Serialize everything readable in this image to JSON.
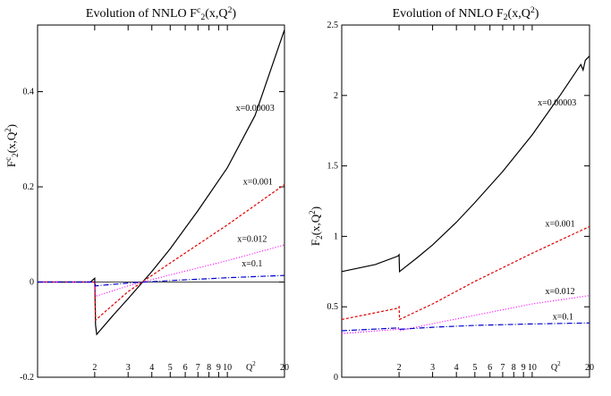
{
  "chart_data": [
    {
      "type": "line",
      "title": "Evolution of NNLO F",
      "title_sup": "c",
      "title_sub": "2",
      "title_tail": "(x,Q",
      "title_sup2": "2",
      "title_close": ")",
      "ylabel_main": "F",
      "ylabel_sup": "c",
      "ylabel_sub": "2",
      "ylabel_tail": "(x,Q",
      "ylabel_sup2": "2",
      "ylabel_close": ")",
      "xlabel": "Q",
      "xlabel_sup": "2",
      "xscale": "log",
      "xlim": [
        1.0,
        20
      ],
      "ylim": [
        -0.2,
        0.54
      ],
      "xticks": [
        2,
        3,
        4,
        5,
        6,
        7,
        8,
        9,
        10,
        20
      ],
      "xtick_labels": [
        "2",
        "3",
        "4",
        "5",
        "6",
        "7",
        "8",
        "9",
        "10",
        "20"
      ],
      "yticks": [
        -0.2,
        0,
        0.2,
        0.4
      ],
      "ytick_labels": [
        "-0.2",
        "0",
        "0.2",
        "0.4"
      ],
      "zero_line": true,
      "series": [
        {
          "name": "x=0.00003",
          "color": "#000000",
          "dash": "",
          "x": [
            1.0,
            1.9,
            2.0,
            2.02,
            2.05,
            2.1,
            2.5,
            3.0,
            4.0,
            5.0,
            7.0,
            10.0,
            14.0,
            20.0
          ],
          "y": [
            0.0,
            0.0,
            0.008,
            -0.09,
            -0.11,
            -0.105,
            -0.07,
            -0.035,
            0.022,
            0.07,
            0.15,
            0.24,
            0.35,
            0.53
          ]
        },
        {
          "name": "x=0.001",
          "color": "#dd0000",
          "dash": "3,2",
          "x": [
            1.0,
            1.95,
            2.0,
            2.02,
            3.0,
            5.0,
            10.0,
            20.0
          ],
          "y": [
            0.0,
            0.0,
            0.0,
            -0.08,
            -0.02,
            0.04,
            0.12,
            0.205
          ]
        },
        {
          "name": "x=0.012",
          "color": "#ff00ff",
          "dash": "1,2",
          "x": [
            1.0,
            1.95,
            2.0,
            2.02,
            3.0,
            5.0,
            10.0,
            20.0
          ],
          "y": [
            0.0,
            0.0,
            0.0,
            -0.03,
            -0.008,
            0.015,
            0.045,
            0.078
          ]
        },
        {
          "name": "x=0.1",
          "color": "#0000cc",
          "dash": "6,2,1,2",
          "x": [
            1.0,
            2.0,
            2.02,
            3.0,
            5.0,
            10.0,
            20.0
          ],
          "y": [
            0.0,
            0.0,
            -0.008,
            -0.002,
            0.003,
            0.009,
            0.014
          ]
        }
      ],
      "labels": [
        {
          "text": "x=0.00003",
          "x": 14.0,
          "y": 0.36
        },
        {
          "text": "x=0.001",
          "x": 14.5,
          "y": 0.205
        },
        {
          "text": "x=0.012",
          "x": 13.5,
          "y": 0.085
        },
        {
          "text": "x=0.1",
          "x": 13.5,
          "y": 0.033
        }
      ]
    },
    {
      "type": "line",
      "title": "Evolution of NNLO F",
      "title_sup": "",
      "title_sub": "2",
      "title_tail": "(x,Q",
      "title_sup2": "2",
      "title_close": ")",
      "ylabel_main": "F",
      "ylabel_sup": "",
      "ylabel_sub": "2",
      "ylabel_tail": "(x,Q",
      "ylabel_sup2": "2",
      "ylabel_close": ")",
      "xlabel": "Q",
      "xlabel_sup": "2",
      "xscale": "log",
      "xlim": [
        1.0,
        20
      ],
      "ylim": [
        0,
        2.5
      ],
      "xticks": [
        2,
        3,
        4,
        5,
        6,
        7,
        8,
        9,
        10,
        20
      ],
      "xtick_labels": [
        "2",
        "3",
        "4",
        "5",
        "6",
        "7",
        "8",
        "9",
        "10",
        "20"
      ],
      "yticks": [
        0,
        0.5,
        1,
        1.5,
        2,
        2.5
      ],
      "ytick_labels": [
        "0",
        "0.5",
        "1",
        "1.5",
        "2",
        "2.5"
      ],
      "zero_line": false,
      "series": [
        {
          "name": "x=0.00003",
          "color": "#000000",
          "dash": "",
          "x": [
            1.0,
            1.5,
            1.97,
            2.0,
            2.01,
            2.5,
            3.0,
            4.0,
            5.0,
            7.0,
            10.0,
            14.0,
            18.0,
            18.5,
            19.0,
            20.0
          ],
          "y": [
            0.75,
            0.8,
            0.86,
            0.87,
            0.75,
            0.85,
            0.94,
            1.1,
            1.24,
            1.46,
            1.72,
            2.0,
            2.22,
            2.18,
            2.25,
            2.28
          ]
        },
        {
          "name": "x=0.001",
          "color": "#dd0000",
          "dash": "3,2",
          "x": [
            1.0,
            1.97,
            2.0,
            2.01,
            3.0,
            5.0,
            10.0,
            20.0
          ],
          "y": [
            0.41,
            0.49,
            0.5,
            0.41,
            0.52,
            0.68,
            0.88,
            1.07
          ]
        },
        {
          "name": "x=0.012",
          "color": "#ff00ff",
          "dash": "1,2",
          "x": [
            1.0,
            1.97,
            2.0,
            2.01,
            3.0,
            5.0,
            10.0,
            20.0
          ],
          "y": [
            0.31,
            0.34,
            0.35,
            0.33,
            0.38,
            0.44,
            0.52,
            0.58
          ]
        },
        {
          "name": "x=0.1",
          "color": "#0000cc",
          "dash": "6,2,1,2",
          "x": [
            1.0,
            2.0,
            2.01,
            3.0,
            5.0,
            10.0,
            20.0
          ],
          "y": [
            0.33,
            0.35,
            0.34,
            0.355,
            0.368,
            0.378,
            0.385
          ]
        }
      ],
      "labels": [
        {
          "text": "x=0.00003",
          "x": 13.5,
          "y": 1.93
        },
        {
          "text": "x=0.001",
          "x": 14.0,
          "y": 1.07
        },
        {
          "text": "x=0.012",
          "x": 14.0,
          "y": 0.59
        },
        {
          "text": "x=0.1",
          "x": 14.5,
          "y": 0.41
        }
      ]
    }
  ]
}
